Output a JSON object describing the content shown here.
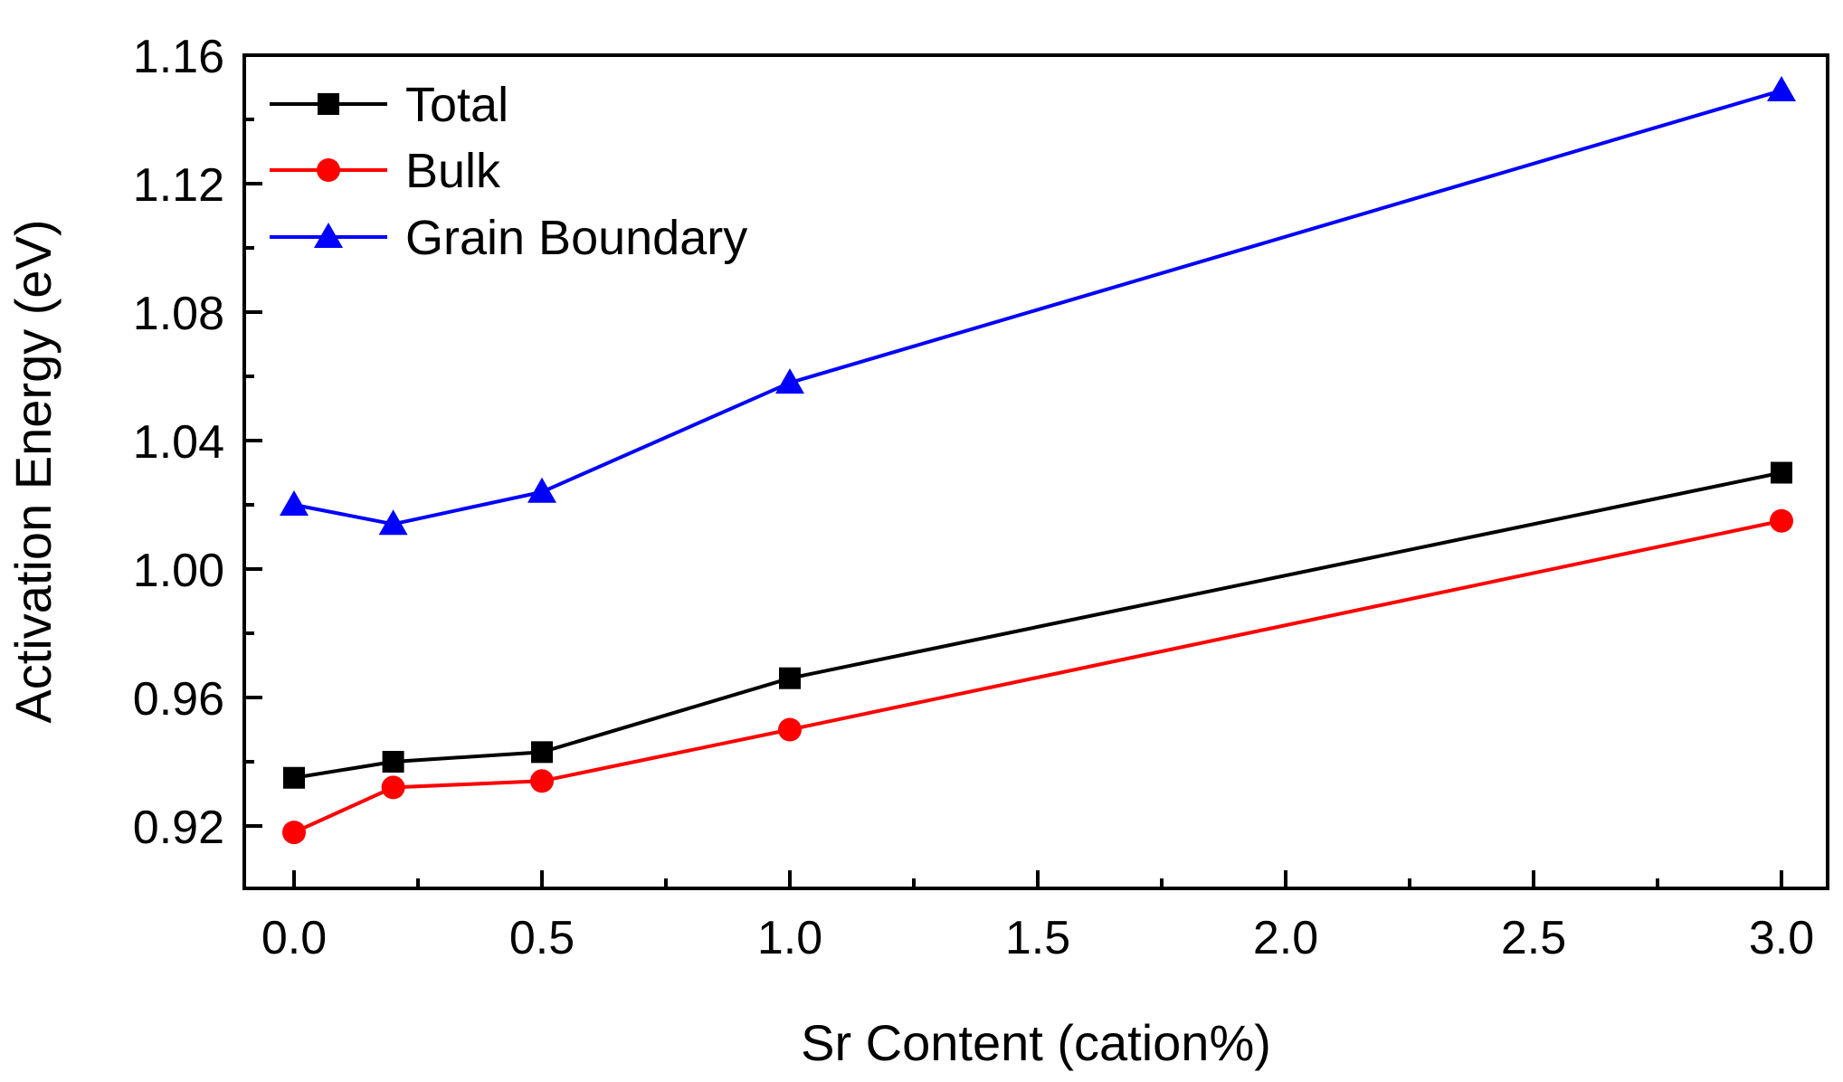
{
  "chart_data": {
    "type": "line",
    "title": "",
    "xlabel": "Sr Content (cation%)",
    "ylabel": "Activation Energy (eV)",
    "xlim": [
      -0.1,
      3.1
    ],
    "ylim": [
      0.9,
      1.16
    ],
    "xticks": [
      0.0,
      0.5,
      1.0,
      1.5,
      2.0,
      2.5,
      3.0
    ],
    "xtick_labels": [
      "0.0",
      "0.5",
      "1.0",
      "1.5",
      "2.0",
      "2.5",
      "3.0"
    ],
    "yticks": [
      0.92,
      0.96,
      1.0,
      1.04,
      1.08,
      1.12,
      1.16
    ],
    "ytick_labels": [
      "0.92",
      "0.96",
      "1.00",
      "1.04",
      "1.08",
      "1.12",
      "1.16"
    ],
    "grid": false,
    "legend_position": "top-left",
    "x": [
      0.0,
      0.2,
      0.5,
      1.0,
      3.0
    ],
    "series": [
      {
        "name": "Total",
        "color": "#000000",
        "marker": "square",
        "values": [
          0.935,
          0.94,
          0.943,
          0.966,
          1.03
        ]
      },
      {
        "name": "Bulk",
        "color": "#ff0000",
        "marker": "circle",
        "values": [
          0.918,
          0.932,
          0.934,
          0.95,
          1.015
        ]
      },
      {
        "name": "Grain Boundary",
        "color": "#0000ff",
        "marker": "triangle",
        "values": [
          1.02,
          1.014,
          1.024,
          1.058,
          1.149
        ]
      }
    ]
  }
}
